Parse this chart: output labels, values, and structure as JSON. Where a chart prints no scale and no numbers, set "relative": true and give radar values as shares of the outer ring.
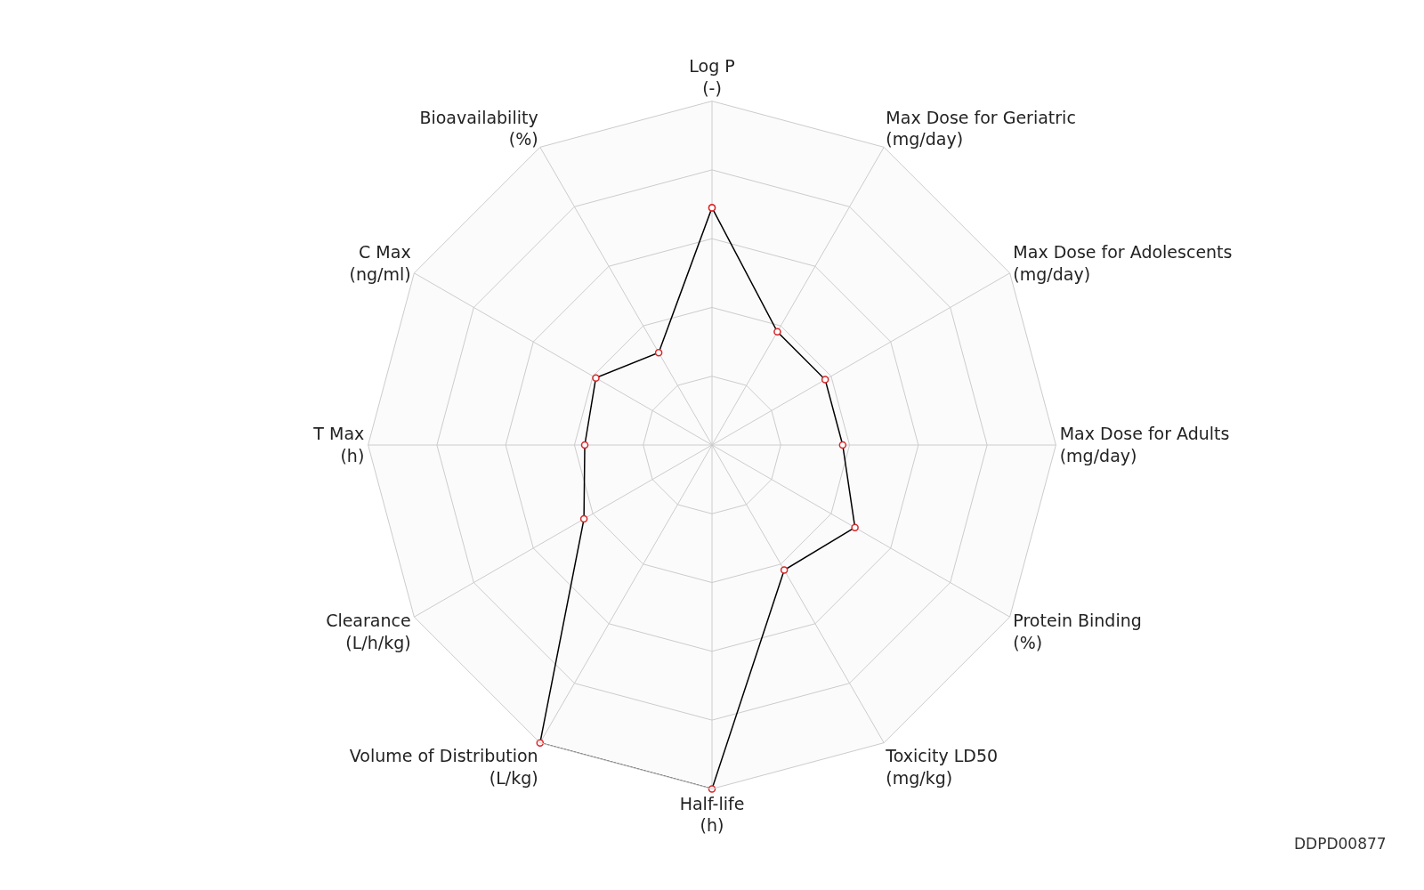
{
  "chart_data": {
    "type": "radar",
    "relative": true,
    "categories": [
      "Log P\n(-)",
      "Max Dose for Geriatric\n(mg/day)",
      "Max Dose for Adolescents\n(mg/day)",
      "Max Dose for Adults\n(mg/day)",
      "Protein Binding\n(%)",
      "Toxicity LD50\n(mg/kg)",
      "Half-life\n(h)",
      "Volume of Distribution\n(L/kg)",
      "Clearance\n(L/h/kg)",
      "T Max\n(h)",
      "C Max\n(ng/ml)",
      "Bioavailability\n(%)"
    ],
    "series": [
      {
        "color": "#000000",
        "values": [
          0.69,
          0.38,
          0.38,
          0.38,
          0.48,
          0.42,
          1.0,
          1.0,
          0.43,
          0.37,
          0.39,
          0.31
        ]
      }
    ],
    "marker": "circle",
    "annotations": [
      "DDPD00877"
    ]
  }
}
